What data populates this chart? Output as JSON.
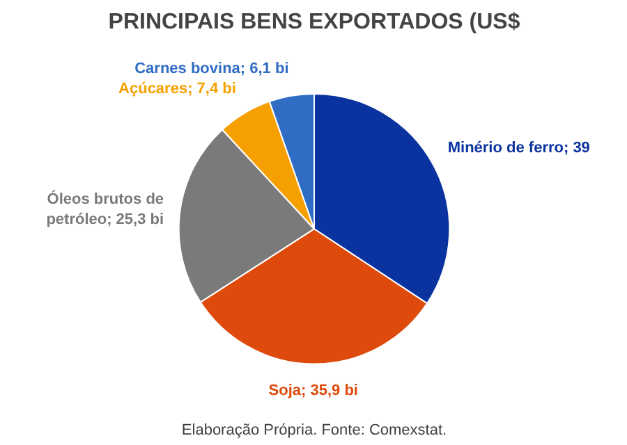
{
  "chart_data": {
    "type": "pie",
    "title": "PRINCIPAIS BENS EXPORTADOS (US$",
    "categories": [
      "Minério de ferro",
      "Soja",
      "Óleos brutos de petróleo",
      "Açúcares ",
      "Carnes bovina"
    ],
    "values": [
      39,
      35.9,
      25.3,
      7.4,
      6.1
    ],
    "value_labels": [
      "39",
      "35,9 bi",
      "25,3 bi",
      "7,4 bi",
      "6,1 bi"
    ],
    "colors": [
      "#0a33a0",
      "#dd4a0c",
      "#7a7a7a",
      "#f5a000",
      "#2f6cc4"
    ],
    "annotations": [
      "Elaboração Própria. Fonte: Comexstat."
    ]
  }
}
